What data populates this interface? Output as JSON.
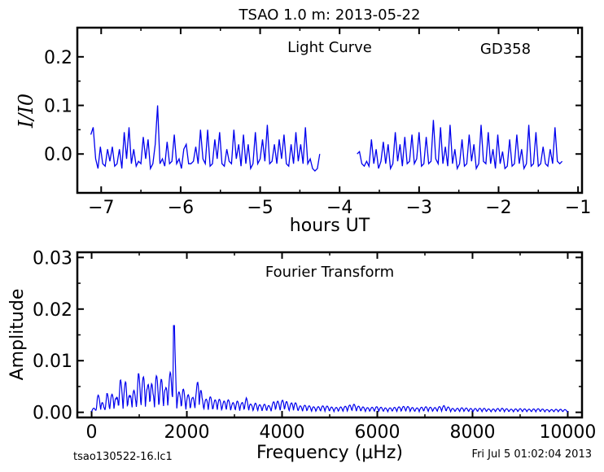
{
  "title": "TSAO 1.0 m:  2013-05-22",
  "footer_left": "tsao130522-16.lc1",
  "footer_right": "Fri Jul  5 01:02:04 2013",
  "line_color": "#0000ee",
  "chart_data": [
    {
      "type": "line",
      "label": "Light Curve",
      "object": "GD358",
      "xlabel": "hours UT",
      "ylabel": "I/I0",
      "xlim": [
        -7.3,
        -0.95
      ],
      "ylim": [
        -0.08,
        0.26
      ],
      "xticks": [
        -7,
        -6,
        -5,
        -4,
        -3,
        -2,
        -1
      ],
      "xtick_labels": [
        "−7",
        "−6",
        "−5",
        "−4",
        "−3",
        "−2",
        "−1"
      ],
      "yticks": [
        0.0,
        0.1,
        0.2
      ],
      "ytick_labels": [
        "0.0",
        "0.1",
        "0.2"
      ],
      "segments": [
        {
          "x": [
            -7.13,
            -7.1,
            -7.07,
            -7.04,
            -7.01,
            -6.98,
            -6.95,
            -6.92,
            -6.89,
            -6.86,
            -6.83,
            -6.8,
            -6.77,
            -6.74,
            -6.71,
            -6.68,
            -6.65,
            -6.62,
            -6.59,
            -6.56,
            -6.53,
            -6.5,
            -6.47,
            -6.44,
            -6.41,
            -6.38,
            -6.35,
            -6.32,
            -6.29,
            -6.26,
            -6.23,
            -6.2,
            -6.17,
            -6.14,
            -6.11,
            -6.08,
            -6.05,
            -6.02,
            -5.99,
            -5.96,
            -5.93,
            -5.9,
            -5.87,
            -5.84,
            -5.81,
            -5.78,
            -5.75,
            -5.72,
            -5.69,
            -5.66,
            -5.63,
            -5.6,
            -5.57,
            -5.54,
            -5.51,
            -5.48,
            -5.45,
            -5.42,
            -5.39,
            -5.36,
            -5.33,
            -5.3,
            -5.27,
            -5.24,
            -5.21,
            -5.18,
            -5.15,
            -5.12,
            -5.09,
            -5.06,
            -5.03,
            -5.0,
            -4.97,
            -4.94,
            -4.91,
            -4.88,
            -4.85,
            -4.82,
            -4.79,
            -4.76,
            -4.73,
            -4.7,
            -4.67,
            -4.64,
            -4.61,
            -4.58,
            -4.55,
            -4.52,
            -4.49,
            -4.46,
            -4.43,
            -4.4,
            -4.37,
            -4.34,
            -4.31,
            -4.28,
            -4.25
          ],
          "y": [
            0.04,
            0.055,
            -0.01,
            -0.03,
            0.015,
            -0.02,
            -0.025,
            0.01,
            -0.015,
            0.015,
            -0.025,
            -0.02,
            0.01,
            -0.03,
            0.045,
            -0.01,
            0.055,
            -0.02,
            0.01,
            -0.025,
            -0.015,
            -0.02,
            0.035,
            -0.01,
            0.03,
            -0.03,
            -0.02,
            0.02,
            0.1,
            -0.02,
            -0.01,
            -0.025,
            0.025,
            -0.02,
            -0.015,
            0.04,
            -0.02,
            -0.01,
            -0.03,
            0.01,
            0.02,
            -0.02,
            -0.02,
            -0.015,
            0.015,
            -0.02,
            0.05,
            -0.01,
            -0.02,
            0.05,
            -0.025,
            -0.02,
            0.03,
            -0.01,
            0.045,
            -0.02,
            -0.025,
            0.01,
            -0.015,
            -0.02,
            0.05,
            -0.01,
            0.02,
            -0.025,
            0.04,
            -0.02,
            0.02,
            -0.03,
            -0.02,
            0.045,
            -0.02,
            -0.01,
            0.03,
            -0.015,
            0.06,
            -0.02,
            -0.015,
            0.02,
            -0.02,
            0.03,
            -0.01,
            0.04,
            -0.02,
            -0.025,
            0.02,
            -0.02,
            0.045,
            -0.015,
            0.02,
            -0.02,
            0.055,
            -0.02,
            -0.01,
            -0.03,
            -0.035,
            -0.03,
            0.0
          ]
        },
        {
          "x": [
            -3.78,
            -3.75,
            -3.72,
            -3.69,
            -3.66,
            -3.63,
            -3.6,
            -3.57,
            -3.54,
            -3.51,
            -3.48,
            -3.45,
            -3.42,
            -3.39,
            -3.36,
            -3.33,
            -3.3,
            -3.27,
            -3.24,
            -3.21,
            -3.18,
            -3.15,
            -3.12,
            -3.09,
            -3.06,
            -3.03,
            -3.0,
            -2.97,
            -2.94,
            -2.91,
            -2.88,
            -2.85,
            -2.82,
            -2.79,
            -2.76,
            -2.73,
            -2.7,
            -2.67,
            -2.64,
            -2.61,
            -2.58,
            -2.55,
            -2.52,
            -2.49,
            -2.46,
            -2.43,
            -2.4,
            -2.37,
            -2.34,
            -2.31,
            -2.28,
            -2.25,
            -2.22,
            -2.19,
            -2.16,
            -2.13,
            -2.1,
            -2.07,
            -2.04,
            -2.01,
            -1.98,
            -1.95,
            -1.92,
            -1.89,
            -1.86,
            -1.83,
            -1.8,
            -1.77,
            -1.74,
            -1.71,
            -1.68,
            -1.65,
            -1.62,
            -1.59,
            -1.56,
            -1.53,
            -1.5,
            -1.47,
            -1.44,
            -1.41,
            -1.38,
            -1.35,
            -1.32,
            -1.29,
            -1.26,
            -1.23,
            -1.2
          ],
          "y": [
            0.0,
            0.005,
            -0.02,
            -0.025,
            -0.015,
            -0.025,
            0.03,
            -0.02,
            0.01,
            -0.03,
            -0.015,
            0.025,
            -0.02,
            0.02,
            -0.03,
            -0.02,
            0.045,
            -0.015,
            0.02,
            -0.025,
            0.035,
            -0.02,
            -0.015,
            0.04,
            -0.02,
            -0.01,
            0.045,
            -0.025,
            -0.02,
            0.035,
            -0.02,
            -0.015,
            0.07,
            -0.01,
            -0.02,
            0.055,
            -0.02,
            0.015,
            -0.025,
            0.06,
            -0.02,
            0.01,
            -0.03,
            -0.02,
            0.03,
            -0.025,
            -0.02,
            0.04,
            -0.015,
            0.02,
            -0.03,
            -0.02,
            0.06,
            -0.015,
            -0.02,
            0.045,
            -0.02,
            0.01,
            -0.03,
            0.04,
            -0.02,
            0.005,
            -0.03,
            -0.025,
            0.03,
            -0.025,
            -0.02,
            0.04,
            -0.02,
            0.01,
            -0.03,
            -0.02,
            0.06,
            -0.025,
            -0.02,
            0.045,
            -0.025,
            -0.02,
            0.015,
            -0.02,
            -0.025,
            0.01,
            -0.02,
            0.055,
            -0.015,
            -0.02,
            -0.015
          ]
        }
      ]
    },
    {
      "type": "line",
      "label": "Fourier Transform",
      "xlabel": "Frequency (μHz)",
      "ylabel": "Amplitude",
      "xlim": [
        -300,
        10300
      ],
      "ylim": [
        -0.001,
        0.031
      ],
      "xticks": [
        0,
        2000,
        4000,
        6000,
        8000,
        10000
      ],
      "xtick_labels": [
        "0",
        "2000",
        "4000",
        "6000",
        "8000",
        "10000"
      ],
      "yticks": [
        0.0,
        0.01,
        0.02,
        0.03
      ],
      "ytick_labels": [
        "0.00",
        "0.01",
        "0.02",
        "0.03"
      ],
      "peaks": [
        [
          80,
          0.0008
        ],
        [
          120,
          0.0035
        ],
        [
          180,
          0.003
        ],
        [
          260,
          0.0012
        ],
        [
          320,
          0.0038
        ],
        [
          380,
          0.0028
        ],
        [
          460,
          0.004
        ],
        [
          520,
          0.0026
        ],
        [
          600,
          0.0066
        ],
        [
          660,
          0.0045
        ],
        [
          720,
          0.0062
        ],
        [
          800,
          0.003
        ],
        [
          860,
          0.0052
        ],
        [
          920,
          0.0034
        ],
        [
          980,
          0.0078
        ],
        [
          1040,
          0.0058
        ],
        [
          1100,
          0.0072
        ],
        [
          1170,
          0.0048
        ],
        [
          1230,
          0.0077
        ],
        [
          1290,
          0.0042
        ],
        [
          1350,
          0.0075
        ],
        [
          1420,
          0.0055
        ],
        [
          1480,
          0.0068
        ],
        [
          1550,
          0.0045
        ],
        [
          1620,
          0.007
        ],
        [
          1680,
          0.0085
        ],
        [
          1730,
          0.0168
        ],
        [
          1790,
          0.0045
        ],
        [
          1850,
          0.0038
        ],
        [
          1910,
          0.005
        ],
        [
          1980,
          0.0032
        ],
        [
          2050,
          0.0035
        ],
        [
          2120,
          0.0028
        ],
        [
          2200,
          0.0045
        ],
        [
          2250,
          0.0078
        ],
        [
          2320,
          0.003
        ],
        [
          2400,
          0.0025
        ],
        [
          2480,
          0.0032
        ],
        [
          2560,
          0.0022
        ],
        [
          2650,
          0.0028
        ],
        [
          2750,
          0.002
        ],
        [
          2850,
          0.0026
        ],
        [
          2950,
          0.0018
        ],
        [
          3050,
          0.0022
        ],
        [
          3150,
          0.0018
        ],
        [
          3250,
          0.0028
        ],
        [
          3350,
          0.0015
        ],
        [
          3450,
          0.0018
        ],
        [
          3550,
          0.0014
        ],
        [
          3650,
          0.0016
        ],
        [
          3750,
          0.0012
        ],
        [
          3850,
          0.0024
        ],
        [
          3950,
          0.002
        ],
        [
          4050,
          0.0026
        ],
        [
          4150,
          0.0015
        ],
        [
          4250,
          0.0022
        ],
        [
          4350,
          0.0012
        ],
        [
          4500,
          0.0014
        ],
        [
          4700,
          0.001
        ],
        [
          4900,
          0.0013
        ],
        [
          5100,
          0.0009
        ],
        [
          5300,
          0.0011
        ],
        [
          5500,
          0.0016
        ],
        [
          5600,
          0.0012
        ],
        [
          5800,
          0.0009
        ],
        [
          6000,
          0.0011
        ],
        [
          6200,
          0.0008
        ],
        [
          6400,
          0.001
        ],
        [
          6600,
          0.0012
        ],
        [
          6800,
          0.0008
        ],
        [
          7000,
          0.0011
        ],
        [
          7200,
          0.0009
        ],
        [
          7400,
          0.0013
        ],
        [
          7600,
          0.0007
        ],
        [
          7800,
          0.0009
        ],
        [
          8000,
          0.0007
        ],
        [
          8200,
          0.0008
        ],
        [
          8400,
          0.0006
        ],
        [
          8600,
          0.0008
        ],
        [
          8800,
          0.0006
        ],
        [
          9000,
          0.0007
        ],
        [
          9200,
          0.0006
        ],
        [
          9400,
          0.0007
        ],
        [
          9600,
          0.0005
        ],
        [
          9800,
          0.0006
        ],
        [
          10000,
          0.0005
        ]
      ]
    }
  ]
}
